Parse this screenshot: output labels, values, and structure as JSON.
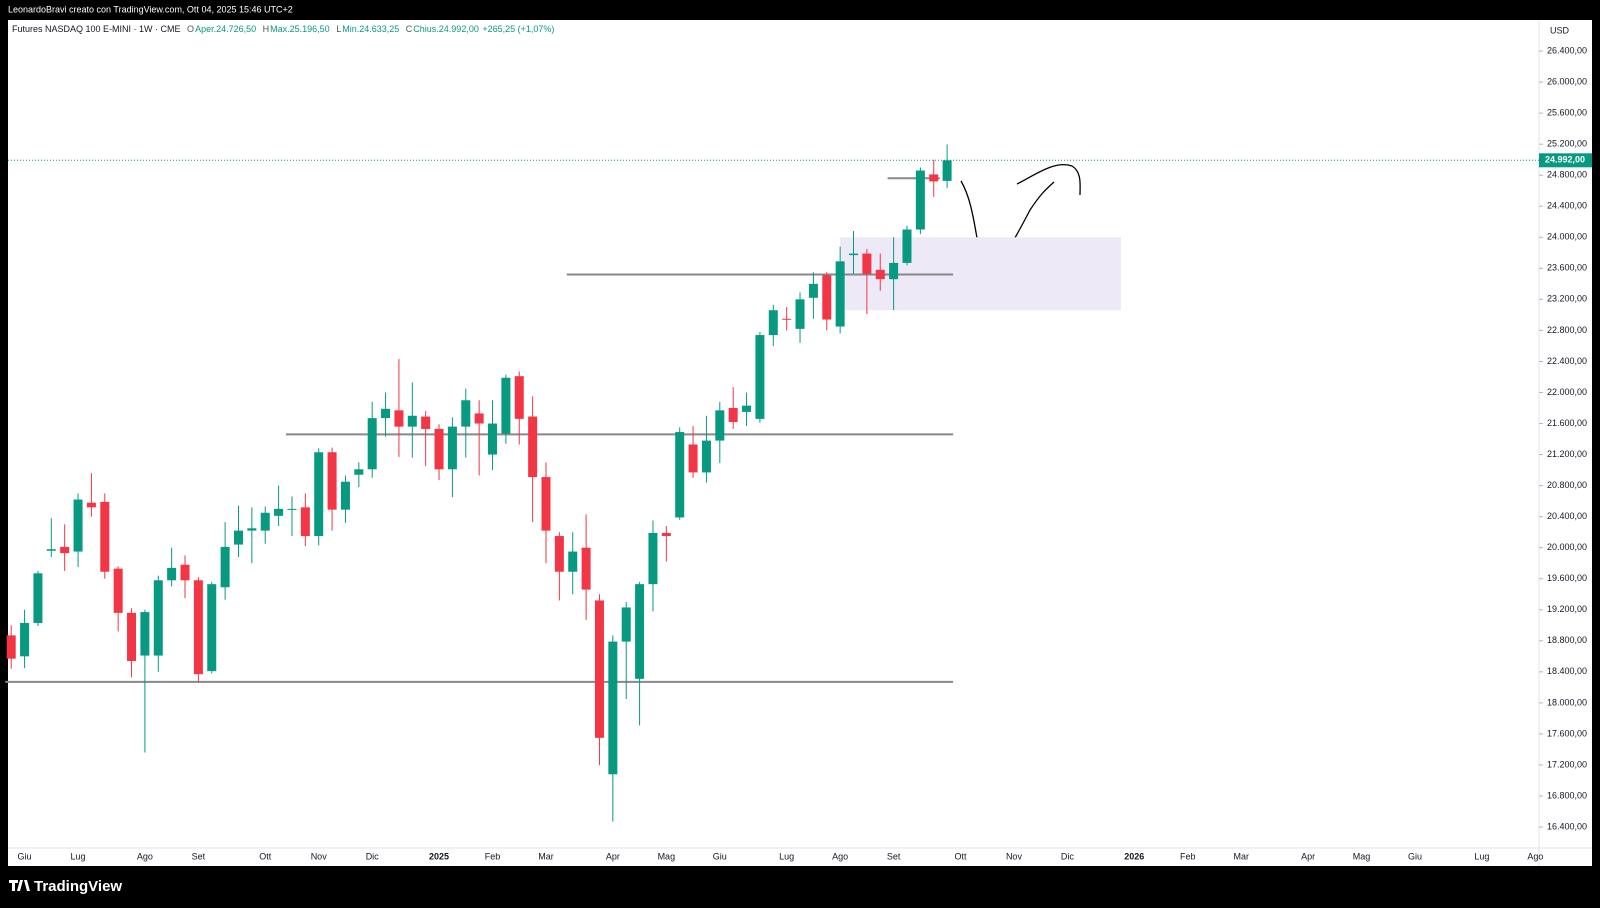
{
  "chart_data": {
    "type": "candlestick",
    "topbar": "LeonardoBravi creato con TradingView.com, Ott 04, 2025 15:46 UTC+2",
    "title": "Futures NASDAQ 100 E-MINI · 1W · CME",
    "ohlc_legend": [
      "O",
      "Aper.24.726,50",
      "H",
      "Max.25.196,50",
      "L",
      "Min.24.633,25",
      "C",
      "Chius.24.992,00",
      "+265,25 (+1,07%)"
    ],
    "currency": "USD",
    "brand": "TradingView",
    "up_color": "#089981",
    "down_color": "#f23645",
    "grid": false,
    "categories": [
      null,
      "Giu",
      null,
      null,
      null,
      "Lug",
      null,
      null,
      null,
      null,
      "Ago",
      null,
      null,
      null,
      "Set",
      null,
      null,
      null,
      null,
      "Ott",
      null,
      null,
      null,
      "Nov",
      null,
      null,
      null,
      "Dic",
      null,
      null,
      null,
      null,
      "2025",
      null,
      null,
      null,
      "Feb",
      null,
      null,
      null,
      "Mar",
      null,
      null,
      null,
      null,
      "Apr",
      null,
      null,
      null,
      "Mag",
      null,
      null,
      null,
      "Giu",
      null,
      null,
      null,
      null,
      "Lug",
      null,
      null,
      null,
      "Ago",
      null,
      null,
      null,
      "Set",
      null,
      null,
      null,
      null,
      "Ott",
      null,
      null,
      null,
      "Nov",
      null,
      null,
      null,
      "Dic",
      null,
      null,
      null,
      null,
      "2026",
      null,
      null,
      null,
      "Feb",
      null,
      null,
      null,
      "Mar",
      null,
      null,
      null,
      null,
      "Apr",
      null,
      null,
      null,
      "Mag",
      null,
      null,
      null,
      "Giu",
      null,
      null,
      null,
      null,
      "Lug",
      null,
      null,
      null,
      "Ago"
    ],
    "open": [
      18870,
      18600,
      19030,
      19960,
      20010,
      19950,
      20580,
      20590,
      19730,
      19160,
      18610,
      18610,
      19580,
      19780,
      19580,
      18410,
      19490,
      20040,
      20220,
      20220,
      20410,
      20490,
      20520,
      20150,
      21230,
      20490,
      20940,
      21010,
      21670,
      21770,
      21560,
      21690,
      21530,
      21010,
      21560,
      21730,
      21200,
      21470,
      22210,
      21690,
      20910,
      20150,
      19690,
      20000,
      19320,
      17080,
      18790,
      18310,
      19530,
      20190,
      20390,
      21330,
      20970,
      21380,
      21800,
      21750,
      21660,
      22740,
      22950,
      22820,
      23220,
      23510,
      22850,
      23770,
      23790,
      23580,
      23460,
      23670,
      24100,
      24810,
      24726.5,
      null,
      null,
      null,
      null,
      null,
      null,
      null,
      null,
      null,
      null,
      null,
      null,
      null,
      null,
      null,
      null,
      null,
      null,
      null,
      null,
      null,
      null,
      null,
      null,
      null,
      null,
      null,
      null,
      null,
      null,
      null,
      null,
      null,
      null,
      null,
      null,
      null,
      null,
      null,
      null,
      null,
      null,
      null,
      null
    ],
    "high": [
      19000,
      19200,
      19700,
      20380,
      20300,
      20700,
      20960,
      20700,
      19760,
      19220,
      19200,
      19640,
      20000,
      19900,
      19620,
      19560,
      20330,
      20540,
      20520,
      20530,
      20800,
      20660,
      20700,
      21280,
      21290,
      20930,
      21100,
      21880,
      22000,
      22430,
      22130,
      21760,
      21590,
      21680,
      22050,
      21900,
      21900,
      22230,
      22270,
      21950,
      21100,
      20200,
      20200,
      20430,
      19400,
      18870,
      19300,
      19560,
      20350,
      20280,
      21550,
      21570,
      21700,
      21880,
      22070,
      22000,
      22780,
      23130,
      23100,
      23290,
      23550,
      23550,
      23880,
      24080,
      23850,
      23790,
      24000,
      24150,
      24900,
      25000,
      25196.5,
      null,
      null,
      null,
      null,
      null,
      null,
      null,
      null,
      null,
      null,
      null,
      null,
      null,
      null,
      null,
      null,
      null,
      null,
      null,
      null,
      null,
      null,
      null,
      null,
      null,
      null,
      null,
      null,
      null,
      null,
      null,
      null,
      null,
      null,
      null,
      null,
      null,
      null,
      null,
      null,
      null,
      null,
      null,
      null
    ],
    "low": [
      18440,
      18450,
      18990,
      19880,
      19700,
      19750,
      20400,
      19600,
      18920,
      18330,
      17360,
      18400,
      19500,
      19350,
      18260,
      18380,
      19330,
      19880,
      19800,
      20050,
      20280,
      20150,
      20020,
      20030,
      20220,
      20320,
      20780,
      20900,
      21430,
      21170,
      21160,
      21050,
      20870,
      20650,
      21160,
      20930,
      21000,
      21340,
      21330,
      20330,
      19800,
      19320,
      19400,
      19070,
      17200,
      16470,
      18050,
      17710,
      19180,
      19820,
      20360,
      20900,
      20840,
      21090,
      21530,
      21570,
      21610,
      22600,
      22800,
      22640,
      22950,
      22800,
      22760,
      23530,
      23010,
      23310,
      23060,
      23640,
      24040,
      24520,
      24633.25,
      null,
      null,
      null,
      null,
      null,
      null,
      null,
      null,
      null,
      null,
      null,
      null,
      null,
      null,
      null,
      null,
      null,
      null,
      null,
      null,
      null,
      null,
      null,
      null,
      null,
      null,
      null,
      null,
      null,
      null,
      null,
      null,
      null,
      null,
      null,
      null,
      null,
      null,
      null,
      null,
      null,
      null,
      null,
      null
    ],
    "close": [
      18570,
      19030,
      19670,
      19980,
      19930,
      20620,
      20520,
      19690,
      19160,
      18540,
      19170,
      19580,
      19740,
      19580,
      18370,
      19530,
      20010,
      20220,
      20250,
      20450,
      20500,
      20500,
      20150,
      21230,
      20490,
      20850,
      21010,
      21670,
      21790,
      21560,
      21700,
      21530,
      21010,
      21560,
      21900,
      21600,
      21600,
      22190,
      21660,
      20910,
      20220,
      19690,
      19950,
      19460,
      17550,
      18790,
      19230,
      19530,
      20190,
      20150,
      21490,
      20970,
      21380,
      21770,
      21620,
      21830,
      22740,
      23060,
      22940,
      23200,
      23400,
      22940,
      23690,
      23790,
      23530,
      23460,
      23670,
      24100,
      24860,
      24720,
      24992,
      null,
      null,
      null,
      null,
      null,
      null,
      null,
      null,
      null,
      null,
      null,
      null,
      null,
      null,
      null,
      null,
      null,
      null,
      null,
      null,
      null,
      null,
      null,
      null,
      null,
      null,
      null,
      null,
      null,
      null,
      null,
      null,
      null,
      null,
      null,
      null,
      null,
      null,
      null,
      null,
      null,
      null,
      null,
      null
    ],
    "last_price_label": "24.992,00",
    "ylim": [
      16130,
      26800
    ],
    "yticks": [
      {
        "value": 16400,
        "label": "16.400,00"
      },
      {
        "value": 16800,
        "label": "16.800,00"
      },
      {
        "value": 17200,
        "label": "17.200,00"
      },
      {
        "value": 17600,
        "label": "17.600,00"
      },
      {
        "value": 18000,
        "label": "18.000,00"
      },
      {
        "value": 18400,
        "label": "18.400,00"
      },
      {
        "value": 18800,
        "label": "18.800,00"
      },
      {
        "value": 19200,
        "label": "19.200,00"
      },
      {
        "value": 19600,
        "label": "19.600,00"
      },
      {
        "value": 20000,
        "label": "20.000,00"
      },
      {
        "value": 20400,
        "label": "20.400,00"
      },
      {
        "value": 20800,
        "label": "20.800,00"
      },
      {
        "value": 21200,
        "label": "21.200,00"
      },
      {
        "value": 21600,
        "label": "21.600,00"
      },
      {
        "value": 22000,
        "label": "22.000,00"
      },
      {
        "value": 22400,
        "label": "22.400,00"
      },
      {
        "value": 22800,
        "label": "22.800,00"
      },
      {
        "value": 23200,
        "label": "23.200,00"
      },
      {
        "value": 23600,
        "label": "23.600,00"
      },
      {
        "value": 24000,
        "label": "24.000,00"
      },
      {
        "value": 24400,
        "label": "24.400,00"
      },
      {
        "value": 24800,
        "label": "24.800,00"
      },
      {
        "value": 25200,
        "label": "25.200,00"
      },
      {
        "value": 25600,
        "label": "25.600,00"
      },
      {
        "value": 26000,
        "label": "26.000,00"
      },
      {
        "value": 26400,
        "label": "26.400,00"
      }
    ],
    "levels": [
      {
        "price": 18270,
        "from": 0,
        "to": 70
      },
      {
        "price": 21460,
        "from": 21,
        "to": 70
      },
      {
        "price": 23520,
        "from": 42,
        "to": 70
      },
      {
        "price": 24760,
        "from": 66,
        "to": 69
      }
    ],
    "zone": {
      "from": 62,
      "to": 83,
      "low": 23060,
      "high": 24000
    }
  }
}
